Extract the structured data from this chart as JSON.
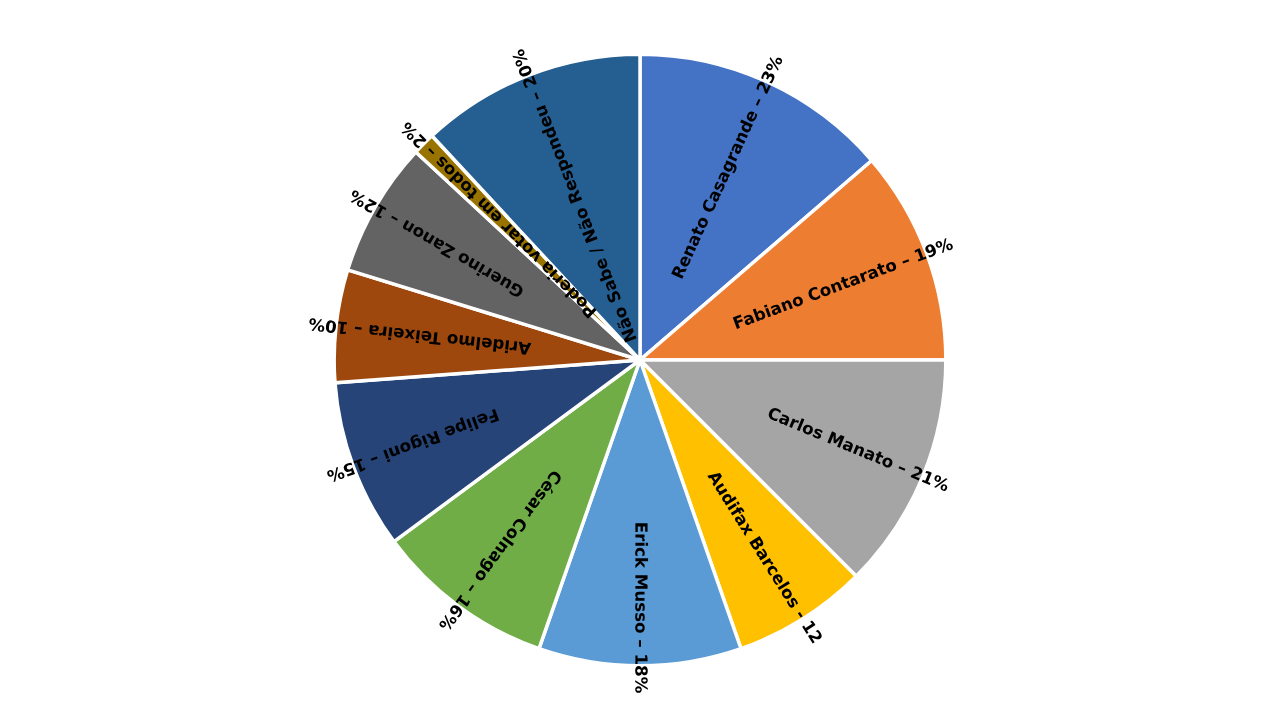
{
  "chart_data": {
    "type": "pie",
    "categories": [
      "Renato Casagrande –",
      "Fabiano Contarato –",
      "Carlos Manato –",
      "Audifax Barcelos -",
      "Erick Musso –",
      "César Colnago –",
      "Felipe Rigoni –",
      "Aridelmo Teixeira –",
      "Guerino Zanon –",
      "Poderia votar em todos –",
      "Não Sabe / Não Respondeu –"
    ],
    "values": [
      23,
      19,
      21,
      12,
      18,
      16,
      15,
      10,
      12,
      2,
      20
    ],
    "value_labels": [
      "23%",
      "19%",
      "21%",
      "12",
      "18%",
      "16%",
      "15%",
      "10%",
      "12%",
      "2%",
      "20%"
    ],
    "colors": [
      "#4472c4",
      "#ed7d31",
      "#a5a5a5",
      "#ffc000",
      "#5b9bd5",
      "#70ad47",
      "#264478",
      "#9e480e",
      "#636363",
      "#997300",
      "#255e91"
    ]
  }
}
